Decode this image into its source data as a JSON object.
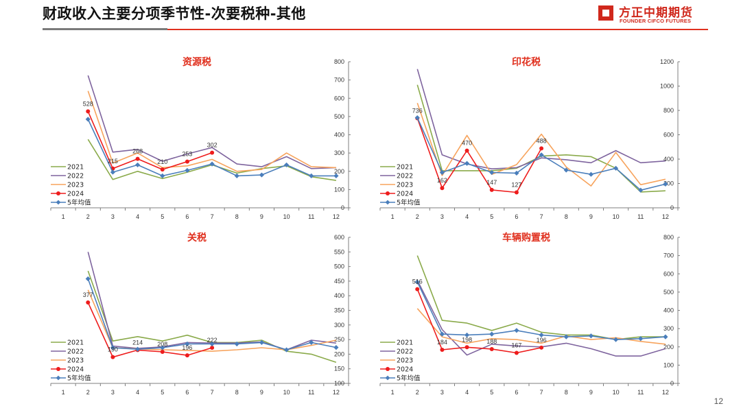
{
  "page": {
    "title": "财政收入主要分项季节性-次要税种-其他",
    "number": "12"
  },
  "logo": {
    "cn": "方正中期期货",
    "en": "FOUNDER CIFCO FUTURES"
  },
  "colors": {
    "accent": "#e0301e",
    "rule_dark": "#7a7a7a",
    "logo": "#d0281c"
  },
  "chart_data": [
    {
      "type": "line",
      "title": "资源税",
      "x": [
        1,
        2,
        3,
        4,
        5,
        6,
        7,
        8,
        9,
        10,
        11,
        12
      ],
      "ylim": [
        0,
        800
      ],
      "yticks": [
        0,
        100,
        200,
        300,
        400,
        500,
        600,
        700,
        800
      ],
      "legend_position": "lower-left",
      "series": [
        {
          "name": "2021",
          "color": "#8aaa4a",
          "marker": false,
          "values": [
            null,
            375,
            155,
            200,
            160,
            195,
            235,
            190,
            215,
            230,
            170,
            150
          ]
        },
        {
          "name": "2022",
          "color": "#7e649e",
          "marker": false,
          "values": [
            null,
            725,
            305,
            320,
            255,
            295,
            330,
            240,
            225,
            280,
            215,
            220
          ]
        },
        {
          "name": "2023",
          "color": "#f7a35c",
          "marker": false,
          "values": [
            null,
            640,
            245,
            300,
            220,
            230,
            265,
            200,
            210,
            300,
            225,
            220
          ]
        },
        {
          "name": "2024",
          "color": "#ee1c1c",
          "marker": true,
          "labels": true,
          "values": [
            null,
            528,
            215,
            268,
            210,
            253,
            302,
            null,
            null,
            null,
            null,
            null
          ]
        },
        {
          "name": "5年均值",
          "color": "#4a7ebb",
          "marker": true,
          "values": [
            null,
            485,
            195,
            235,
            175,
            205,
            240,
            175,
            180,
            235,
            175,
            175
          ]
        }
      ]
    },
    {
      "type": "line",
      "title": "印花税",
      "x": [
        1,
        2,
        3,
        4,
        5,
        6,
        7,
        8,
        9,
        10,
        11,
        12
      ],
      "ylim": [
        0,
        1200
      ],
      "yticks": [
        0,
        200,
        400,
        600,
        800,
        1000,
        1200
      ],
      "legend_position": "lower-left",
      "series": [
        {
          "name": "2021",
          "color": "#8aaa4a",
          "marker": false,
          "values": [
            null,
            1010,
            305,
            305,
            305,
            325,
            425,
            435,
            420,
            325,
            130,
            140
          ]
        },
        {
          "name": "2022",
          "color": "#7e649e",
          "marker": false,
          "values": [
            null,
            1140,
            435,
            360,
            320,
            330,
            410,
            395,
            370,
            470,
            370,
            385
          ]
        },
        {
          "name": "2023",
          "color": "#f7a35c",
          "marker": false,
          "values": [
            null,
            860,
            265,
            595,
            275,
            355,
            605,
            335,
            180,
            455,
            190,
            235
          ]
        },
        {
          "name": "2024",
          "color": "#ee1c1c",
          "marker": true,
          "labels": true,
          "values": [
            null,
            736,
            162,
            470,
            147,
            127,
            488,
            null,
            null,
            null,
            null,
            null
          ]
        },
        {
          "name": "5年均值",
          "color": "#4a7ebb",
          "marker": true,
          "values": [
            null,
            740,
            290,
            365,
            290,
            285,
            435,
            310,
            275,
            325,
            145,
            195
          ]
        }
      ]
    },
    {
      "type": "line",
      "title": "关税",
      "x": [
        1,
        2,
        3,
        4,
        5,
        6,
        7,
        8,
        9,
        10,
        11,
        12
      ],
      "ylim": [
        100,
        600
      ],
      "yticks": [
        100,
        150,
        200,
        250,
        300,
        350,
        400,
        450,
        500,
        550,
        600
      ],
      "legend_position": "lower-left",
      "series": [
        {
          "name": "2021",
          "color": "#8aaa4a",
          "marker": false,
          "values": [
            null,
            485,
            245,
            260,
            245,
            265,
            240,
            240,
            248,
            210,
            200,
            172
          ]
        },
        {
          "name": "2022",
          "color": "#7e649e",
          "marker": false,
          "values": [
            null,
            550,
            228,
            220,
            225,
            240,
            238,
            238,
            242,
            215,
            248,
            238
          ]
        },
        {
          "name": "2023",
          "color": "#f7a35c",
          "marker": false,
          "values": [
            null,
            420,
            222,
            218,
            215,
            213,
            210,
            215,
            222,
            215,
            230,
            248
          ]
        },
        {
          "name": "2024",
          "color": "#ee1c1c",
          "marker": true,
          "labels": true,
          "values": [
            null,
            377,
            190,
            214,
            208,
            196,
            222,
            null,
            null,
            null,
            null,
            null
          ]
        },
        {
          "name": "5年均值",
          "color": "#4a7ebb",
          "marker": true,
          "values": [
            null,
            458,
            222,
            217,
            222,
            235,
            235,
            235,
            240,
            215,
            240,
            223
          ]
        }
      ]
    },
    {
      "type": "line",
      "title": "车辆购置税",
      "x": [
        1,
        2,
        3,
        4,
        5,
        6,
        7,
        8,
        9,
        10,
        11,
        12
      ],
      "ylim": [
        0,
        800
      ],
      "yticks": [
        0,
        100,
        200,
        300,
        400,
        500,
        600,
        700,
        800
      ],
      "legend_position": "lower-left",
      "series": [
        {
          "name": "2021",
          "color": "#8aaa4a",
          "marker": false,
          "values": [
            null,
            700,
            345,
            330,
            290,
            330,
            280,
            265,
            265,
            240,
            255,
            255
          ]
        },
        {
          "name": "2022",
          "color": "#7e649e",
          "marker": false,
          "values": [
            null,
            565,
            295,
            155,
            215,
            205,
            200,
            220,
            190,
            150,
            150,
            190
          ]
        },
        {
          "name": "2023",
          "color": "#f7a35c",
          "marker": false,
          "values": [
            null,
            410,
            255,
            220,
            245,
            240,
            220,
            260,
            240,
            250,
            230,
            215
          ]
        },
        {
          "name": "2024",
          "color": "#ee1c1c",
          "marker": true,
          "labels": true,
          "values": [
            null,
            516,
            184,
            198,
            188,
            167,
            196,
            null,
            null,
            null,
            null,
            null
          ]
        },
        {
          "name": "5年均值",
          "color": "#4a7ebb",
          "marker": true,
          "values": [
            null,
            555,
            270,
            265,
            270,
            290,
            265,
            255,
            260,
            240,
            245,
            255
          ]
        }
      ]
    }
  ]
}
